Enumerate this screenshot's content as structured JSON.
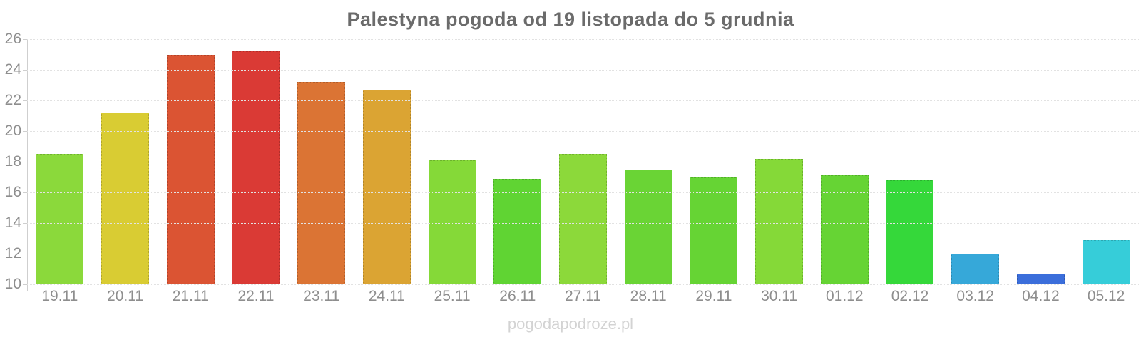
{
  "page": {
    "watermark": "pogodapodroze.pl"
  },
  "chart_data": {
    "type": "bar",
    "title": "Palestyna pogoda od 19 listopada do 5 grudnia",
    "categories": [
      "19.11",
      "20.11",
      "21.11",
      "22.11",
      "23.11",
      "24.11",
      "25.11",
      "26.11",
      "27.11",
      "28.11",
      "29.11",
      "30.11",
      "01.12",
      "02.12",
      "03.12",
      "04.12",
      "05.12"
    ],
    "values": [
      18.5,
      21.2,
      25.0,
      25.2,
      23.2,
      22.7,
      18.1,
      16.9,
      18.5,
      17.5,
      17.0,
      18.2,
      17.1,
      16.8,
      12.0,
      10.7,
      12.9
    ],
    "bar_colors": [
      "#8BD93B",
      "#D9CC33",
      "#DB5433",
      "#DA3A35",
      "#DB7434",
      "#DBA433",
      "#85D938",
      "#60D433",
      "#8CD93A",
      "#6AD435",
      "#66D434",
      "#85D938",
      "#66D434",
      "#35D83A",
      "#36A8D9",
      "#3B6EDB",
      "#36CDD9"
    ],
    "xlabel": "",
    "ylabel": "",
    "ylim": [
      10,
      26
    ],
    "yticks": [
      26,
      24,
      22,
      20,
      18,
      16,
      14,
      12,
      10
    ],
    "grid": "horizontal-dotted",
    "legend": "none"
  }
}
